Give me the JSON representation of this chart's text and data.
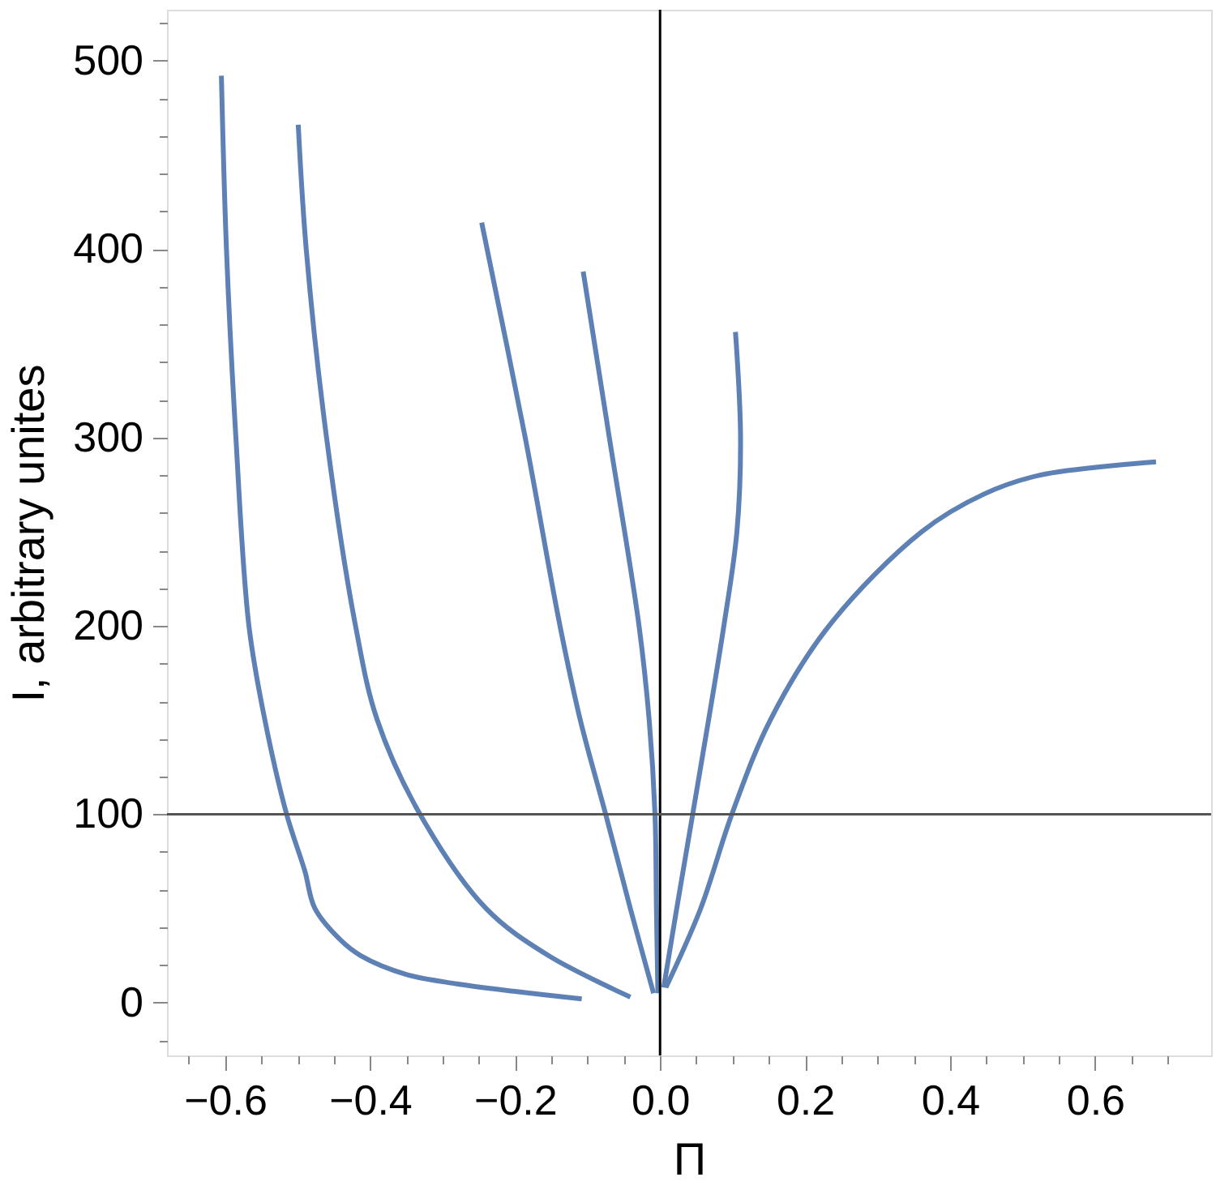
{
  "chart_data": {
    "type": "line",
    "xlabel": "Π",
    "ylabel": "I,  arbitrary unites",
    "xlim": [
      -0.68,
      0.76
    ],
    "ylim": [
      -28,
      527
    ],
    "xticks": [
      {
        "value": -0.6,
        "label": "−0.6"
      },
      {
        "value": -0.55,
        "label": null
      },
      {
        "value": -0.5,
        "label": null
      },
      {
        "value": -0.45,
        "label": null
      },
      {
        "value": -0.4,
        "label": "−0.4"
      },
      {
        "value": -0.35,
        "label": null
      },
      {
        "value": -0.3,
        "label": null
      },
      {
        "value": -0.25,
        "label": null
      },
      {
        "value": -0.2,
        "label": "−0.2"
      },
      {
        "value": -0.15,
        "label": null
      },
      {
        "value": -0.1,
        "label": null
      },
      {
        "value": -0.05,
        "label": null
      },
      {
        "value": 0,
        "label": "0.0"
      },
      {
        "value": 0.05,
        "label": null
      },
      {
        "value": 0.1,
        "label": null
      },
      {
        "value": 0.15,
        "label": null
      },
      {
        "value": 0.2,
        "label": "0.2"
      },
      {
        "value": 0.25,
        "label": null
      },
      {
        "value": 0.3,
        "label": null
      },
      {
        "value": 0.35,
        "label": null
      },
      {
        "value": 0.4,
        "label": "0.4"
      },
      {
        "value": 0.45,
        "label": null
      },
      {
        "value": 0.5,
        "label": null
      },
      {
        "value": 0.55,
        "label": null
      },
      {
        "value": 0.6,
        "label": "0.6"
      },
      {
        "value": 0.65,
        "label": null
      },
      {
        "value": 0.7,
        "label": null
      },
      {
        "value": -0.65,
        "label": null
      }
    ],
    "yticks": [
      {
        "value": -20,
        "label": null
      },
      0,
      {
        "value": 20,
        "label": null
      },
      {
        "value": 40,
        "label": null
      },
      {
        "value": 60,
        "label": null
      },
      {
        "value": 80,
        "label": null
      },
      100,
      {
        "value": 120,
        "label": null
      },
      {
        "value": 140,
        "label": null
      },
      {
        "value": 160,
        "label": null
      },
      {
        "value": 180,
        "label": null
      },
      200,
      {
        "value": 220,
        "label": null
      },
      {
        "value": 240,
        "label": null
      },
      {
        "value": 260,
        "label": null
      },
      {
        "value": 280,
        "label": null
      },
      300,
      {
        "value": 320,
        "label": null
      },
      {
        "value": 340,
        "label": null
      },
      {
        "value": 360,
        "label": null
      },
      {
        "value": 380,
        "label": null
      },
      400,
      {
        "value": 420,
        "label": null
      },
      {
        "value": 440,
        "label": null
      },
      {
        "value": 460,
        "label": null
      },
      {
        "value": 480,
        "label": null
      },
      500,
      {
        "value": 520,
        "label": null
      }
    ],
    "grid": false,
    "marker": "none",
    "line_style": "solid",
    "ref_lines": [
      {
        "axis": "x",
        "value": 0,
        "color": "#000000"
      },
      {
        "axis": "y",
        "value": 100,
        "color": "#555555"
      }
    ],
    "series": [
      {
        "color": "#5e81b5",
        "x": [
          -0.605,
          -0.598,
          -0.585,
          -0.567,
          -0.545,
          -0.515,
          -0.49,
          -0.476,
          -0.44,
          -0.413,
          -0.35,
          -0.28,
          -0.2,
          -0.108
        ],
        "values": [
          492,
          400,
          300,
          200,
          150,
          100,
          70,
          50,
          33,
          25,
          15,
          10,
          6,
          2
        ]
      },
      {
        "color": "#5e81b5",
        "x": [
          -0.499,
          -0.488,
          -0.46,
          -0.42,
          -0.39,
          -0.331,
          -0.24,
          -0.154,
          -0.041
        ],
        "values": [
          466,
          400,
          300,
          200,
          150,
          100,
          50,
          25,
          3
        ]
      },
      {
        "color": "#5e81b5",
        "x": [
          -0.246,
          -0.186,
          -0.138,
          -0.11,
          -0.075,
          -0.041,
          -0.009
        ],
        "values": [
          414,
          300,
          200,
          150,
          100,
          50,
          5
        ]
      },
      {
        "color": "#5e81b5",
        "x": [
          -0.106,
          -0.07,
          -0.029,
          -0.015,
          -0.007,
          -0.005,
          -0.003
        ],
        "values": [
          388,
          300,
          200,
          150,
          100,
          50,
          5
        ]
      },
      {
        "color": "#5e81b5",
        "x": [
          0.104,
          0.111,
          0.106,
          0.088,
          0.045,
          0.023,
          0.005
        ],
        "values": [
          356,
          300,
          250,
          200,
          100,
          50,
          8
        ]
      },
      {
        "color": "#5e81b5",
        "x": [
          0.008,
          0.056,
          0.099,
          0.152,
          0.233,
          0.361,
          0.447,
          0.524,
          0.684
        ],
        "values": [
          8,
          50,
          100,
          150,
          200,
          250,
          270,
          280,
          287
        ]
      }
    ]
  }
}
